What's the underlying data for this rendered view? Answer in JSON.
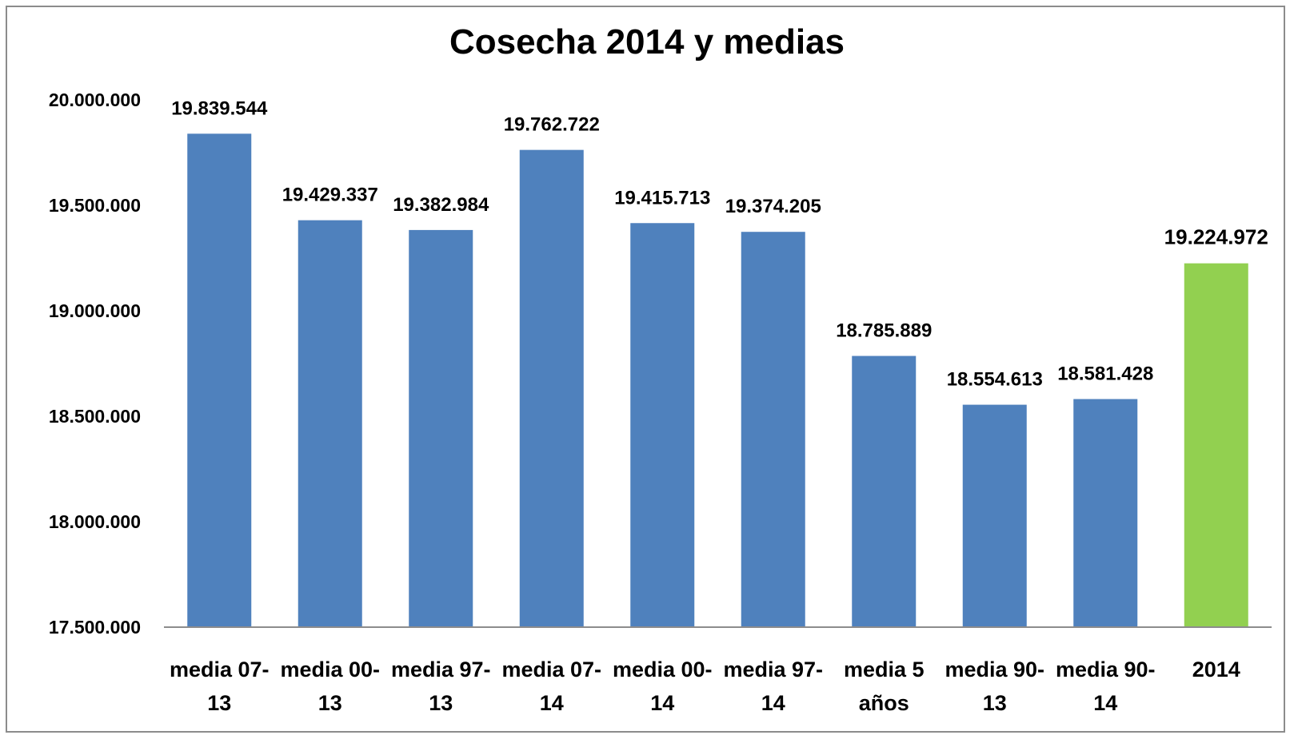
{
  "chart_data": {
    "type": "bar",
    "title": "Cosecha 2014 y medias",
    "xlabel": "",
    "ylabel": "",
    "ylim": [
      17500000,
      20000000
    ],
    "yticks": [
      17500000,
      18000000,
      18500000,
      19000000,
      19500000,
      20000000
    ],
    "ytick_labels": [
      "17.500.000",
      "18.000.000",
      "18.500.000",
      "19.000.000",
      "19.500.000",
      "20.000.000"
    ],
    "grid": false,
    "legend": "none",
    "categories": [
      [
        "media 07-",
        "13"
      ],
      [
        "media 00-",
        "13"
      ],
      [
        "media 97-",
        "13"
      ],
      [
        "media 07-",
        "14"
      ],
      [
        "media 00-",
        "14"
      ],
      [
        "media 97-",
        "14"
      ],
      [
        "media 5",
        "años"
      ],
      [
        "media 90-",
        "13"
      ],
      [
        "media 90-",
        "14"
      ],
      [
        "2014"
      ]
    ],
    "values": [
      19839544,
      19429337,
      19382984,
      19762722,
      19415713,
      19374205,
      18785889,
      18554613,
      18581428,
      19224972
    ],
    "value_labels": [
      "19.839.544",
      "19.429.337",
      "19.382.984",
      "19.762.722",
      "19.415.713",
      "19.374.205",
      "18.785.889",
      "18.554.613",
      "18.581.428",
      "19.224.972"
    ],
    "colors": {
      "default_bar": "#4f81bd",
      "highlight_bar": "#92d050",
      "axis": "#8c8c8c"
    },
    "highlight_index": 9
  }
}
